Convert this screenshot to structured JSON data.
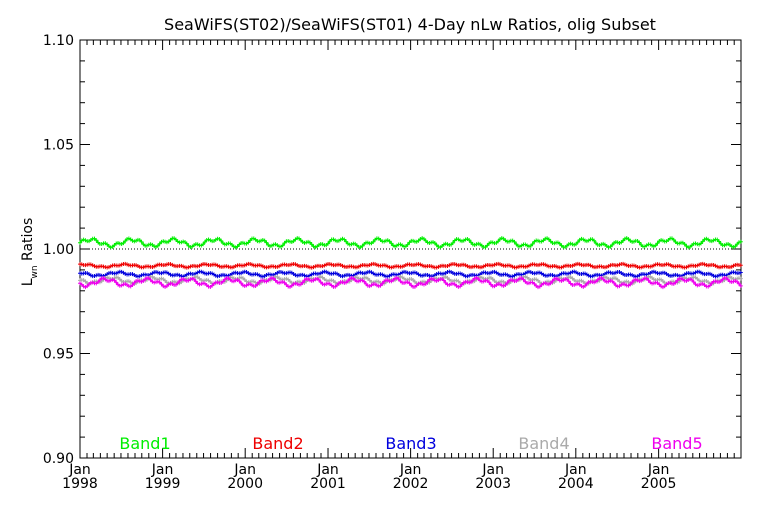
{
  "chart_data": {
    "type": "line",
    "title": "SeaWiFS(ST02)/SeaWiFS(ST01) 4-Day nLw Ratios, olig Subset",
    "ylabel_main": "L",
    "ylabel_sub": "wn",
    "ylabel_rest": " Ratios",
    "xlabel": "",
    "ylim": [
      0.9,
      1.1
    ],
    "xlim": [
      "1998-01-01",
      "2005-12-31"
    ],
    "yticks": [
      "0.90",
      "0.95",
      "1.00",
      "1.05",
      "1.10"
    ],
    "xticks": [
      {
        "month": "Jan",
        "year": "1998"
      },
      {
        "month": "Jan",
        "year": "1999"
      },
      {
        "month": "Jan",
        "year": "2000"
      },
      {
        "month": "Jan",
        "year": "2001"
      },
      {
        "month": "Jan",
        "year": "2002"
      },
      {
        "month": "Jan",
        "year": "2003"
      },
      {
        "month": "Jan",
        "year": "2004"
      },
      {
        "month": "Jan",
        "year": "2005"
      }
    ],
    "reference_line": 1.0,
    "series": [
      {
        "name": "Band1",
        "color": "#00ee00",
        "mean": 1.003,
        "amp": 0.0015
      },
      {
        "name": "Band2",
        "color": "#ee0000",
        "mean": 0.992,
        "amp": 0.0006
      },
      {
        "name": "Band3",
        "color": "#0000dd",
        "mean": 0.988,
        "amp": 0.0008
      },
      {
        "name": "Band4",
        "color": "#aaaaaa",
        "mean": 0.985,
        "amp": 0.0012
      },
      {
        "name": "Band5",
        "color": "#ee00ee",
        "mean": 0.984,
        "amp": 0.0015
      }
    ]
  }
}
